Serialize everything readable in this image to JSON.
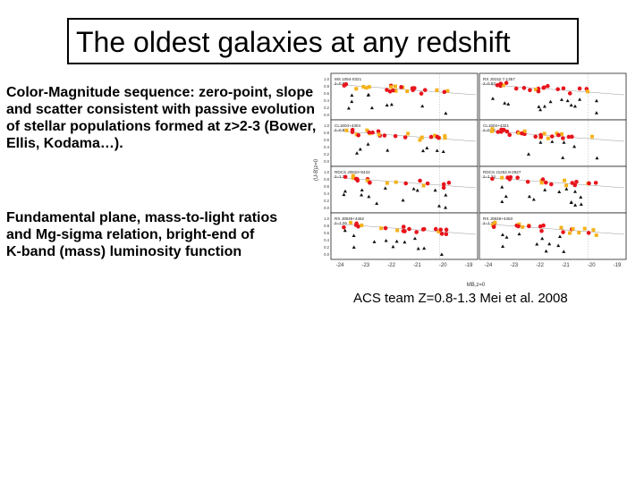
{
  "slide": {
    "title": "The oldest galaxies at any redshift",
    "paragraph1": "Color-Magnitude sequence: zero-point, slope and scatter consistent with passive evolution of stellar populations formed at z>2-3 (Bower, Ellis, Kodama…).",
    "paragraph2_lines": [
      "Fundamental plane, mass-to-light ratios",
      "and Mg-sigma relation, bright-end of",
      " K-band (mass)  luminosity function"
    ],
    "caption": "ACS team Z=0.8-1.3 Mei et al.  2008"
  },
  "figure": {
    "y_ticks": [
      "1.0",
      "0.8",
      "0.6",
      "0.4",
      "0.2",
      "0.0"
    ],
    "x_ticks": [
      "-24",
      "-23",
      "-22",
      "-21",
      "-20",
      "-19"
    ],
    "y_axis_label": "(U-B)z=0",
    "x_axis_label": "MB,z=0",
    "panels": [
      {
        "name": "MS 1054-0321",
        "z": "z=0.83"
      },
      {
        "name": "RX J0152.7-1357",
        "z": "z=0.83"
      },
      {
        "name": "CL1604+4304",
        "z": "z=0.90"
      },
      {
        "name": "CL1604+4321",
        "z": "z=0.92"
      },
      {
        "name": "RDCS J0910+5422",
        "z": "z=1.11"
      },
      {
        "name": "RDCS J1252.9-2927",
        "z": "z=1.24"
      },
      {
        "name": "RX J0849+4452",
        "z": "z=1.26"
      },
      {
        "name": "RX J0848+4453",
        "z": "z=1.27"
      }
    ],
    "colors": {
      "early": "#e8141c",
      "intermediate": "#f5b21b",
      "late": "#111111"
    }
  }
}
